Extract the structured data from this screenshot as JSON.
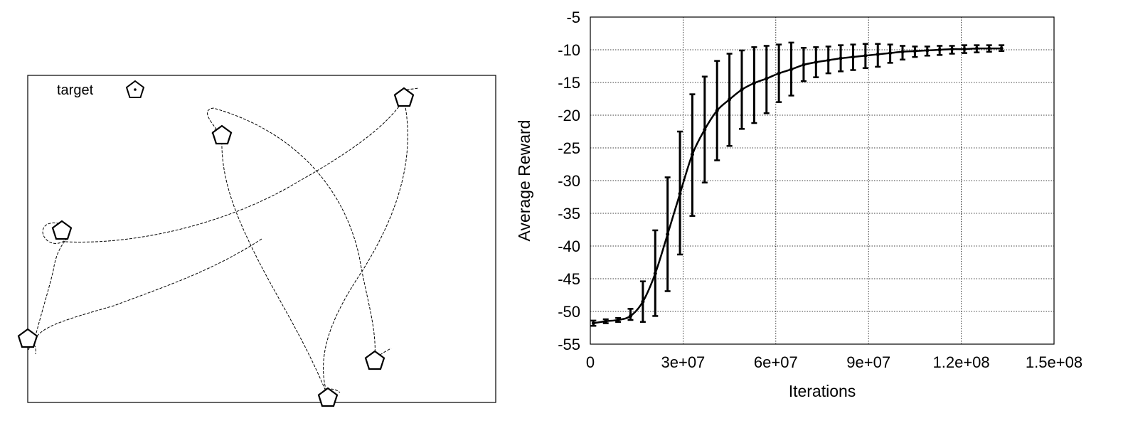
{
  "trajectory_panel": {
    "legend_label": "target",
    "legend_icon": "pentagon-icon",
    "line_style": "dashed",
    "line_color": "#000000"
  },
  "chart_data": {
    "type": "line",
    "title": "",
    "xlabel": "Iterations",
    "ylabel": "Average Reward",
    "xlim": [
      0,
      150000000
    ],
    "ylim": [
      -55,
      -5
    ],
    "xticks": [
      0,
      30000000,
      60000000,
      90000000,
      120000000,
      150000000
    ],
    "xtick_labels": [
      "0",
      "3e+07",
      "6e+07",
      "9e+07",
      "1.2e+08",
      "1.5e+08"
    ],
    "yticks": [
      -55,
      -50,
      -45,
      -40,
      -35,
      -30,
      -25,
      -20,
      -15,
      -10,
      -5
    ],
    "ytick_labels": [
      "-55",
      "-50",
      "-45",
      "-40",
      "-35",
      "-30",
      "-25",
      "-20",
      "-15",
      "-10",
      "-5"
    ],
    "grid": true,
    "grid_style": "dotted",
    "line_color": "#000000",
    "series": [
      {
        "x": [
          1000000,
          5000000,
          9000000,
          13000000,
          17000000,
          21000000,
          25000000,
          29000000,
          33000000,
          37000000,
          41000000,
          45000000,
          49000000,
          53000000,
          57000000,
          61000000,
          65000000,
          69000000,
          73000000,
          77000000,
          81000000,
          85000000,
          89000000,
          93000000,
          97000000,
          101000000,
          105000000,
          109000000,
          113000000,
          117000000,
          121000000,
          125000000,
          129000000,
          133000000
        ],
        "y": [
          -51.8,
          -51.5,
          -51.3,
          -50.7,
          -48.5,
          -44.2,
          -38.2,
          -32.0,
          -26.0,
          -22.2,
          -19.3,
          -17.6,
          -16.1,
          -15.1,
          -14.4,
          -13.6,
          -13.0,
          -12.3,
          -11.9,
          -11.6,
          -11.3,
          -11.1,
          -10.9,
          -10.7,
          -10.5,
          -10.3,
          -10.2,
          -10.1,
          -10.0,
          -9.9,
          -9.9,
          -9.8,
          -9.8,
          -9.8
        ],
        "err_low": [
          -52.2,
          -51.8,
          -51.6,
          -51.3,
          -51.6,
          -50.7,
          -46.9,
          -41.3,
          -35.4,
          -30.3,
          -26.9,
          -24.7,
          -22.1,
          -21.2,
          -19.7,
          -18.0,
          -17.0,
          -14.8,
          -14.2,
          -13.6,
          -13.3,
          -13.1,
          -12.8,
          -12.6,
          -12.0,
          -11.5,
          -11.1,
          -10.9,
          -10.8,
          -10.6,
          -10.5,
          -10.4,
          -10.3,
          -10.2
        ],
        "err_high": [
          -51.4,
          -51.2,
          -51.0,
          -49.6,
          -45.4,
          -37.6,
          -29.5,
          -22.5,
          -16.8,
          -14.1,
          -11.7,
          -10.6,
          -10.1,
          -9.6,
          -9.4,
          -9.2,
          -8.9,
          -9.7,
          -9.6,
          -9.5,
          -9.3,
          -9.2,
          -9.1,
          -9.1,
          -9.2,
          -9.4,
          -9.5,
          -9.5,
          -9.4,
          -9.4,
          -9.3,
          -9.3,
          -9.3,
          -9.3
        ]
      }
    ]
  }
}
